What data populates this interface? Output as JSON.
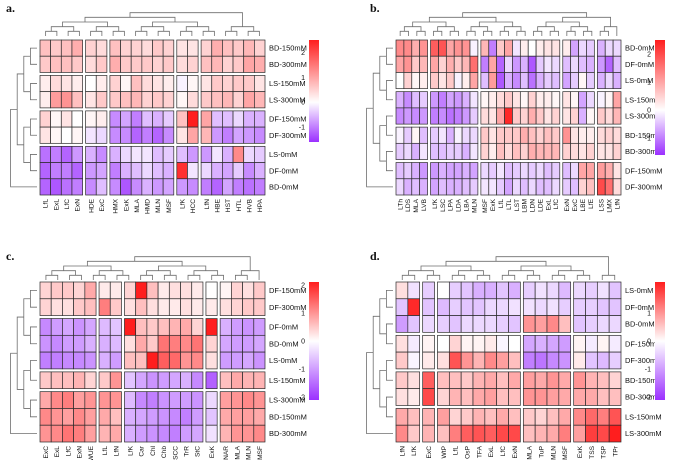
{
  "palette": {
    "low": "#9b30ff",
    "mid": "#ffffff",
    "high": "#ff1e1e",
    "grid": "#2a2a2a",
    "dendrogram": "#6e6e6e"
  },
  "chart_data": [
    {
      "type": "heatmap",
      "panel_label": "a.",
      "rows": [
        "BD-150mM",
        "BD-300mM",
        "LS-150mM",
        "LS-300mM",
        "DF-150mM",
        "DF-300mM",
        "LS-0mM",
        "DF-0mM",
        "BD-0mM"
      ],
      "row_groups": [
        2,
        2,
        2,
        3
      ],
      "columns": [
        "LfL",
        "ExL",
        "LfC",
        "ExN",
        "HDE",
        "ExC",
        "HMX",
        "ExK",
        "MLA",
        "HMD",
        "MLN",
        "MSF",
        "LfK",
        "HCC",
        "LfN",
        "HBE",
        "HST",
        "HTL",
        "HVB",
        "HPA"
      ],
      "column_groups": [
        4,
        2,
        6,
        2,
        6
      ],
      "colorbar": {
        "min": -1.6,
        "max": 2.5,
        "ticks": [
          -1,
          0,
          1,
          2
        ]
      },
      "values": [
        [
          0.7,
          0.6,
          0.7,
          0.9,
          0.5,
          0.4,
          0.7,
          0.5,
          0.5,
          0.4,
          0.6,
          0.5,
          0.3,
          0.3,
          0.5,
          0.9,
          0.7,
          0.6,
          0.8,
          0.5
        ],
        [
          0.6,
          0.7,
          0.7,
          0.6,
          0.4,
          0.6,
          0.9,
          0.6,
          0.6,
          0.6,
          0.5,
          0.6,
          0.4,
          0.5,
          0.7,
          0.8,
          0.5,
          0.6,
          1.0,
          0.9
        ],
        [
          0.2,
          0.4,
          0.3,
          0.2,
          0.0,
          0.2,
          0.5,
          0.1,
          0.7,
          0.4,
          0.3,
          0.2,
          -0.1,
          0.1,
          0.3,
          0.6,
          0.5,
          0.6,
          0.6,
          0.3
        ],
        [
          0.2,
          1.1,
          1.2,
          0.7,
          0.3,
          0.6,
          0.6,
          0.7,
          0.8,
          0.5,
          0.6,
          0.5,
          0.1,
          0.4,
          0.6,
          0.7,
          0.8,
          0.5,
          1.0,
          0.8
        ],
        [
          0.5,
          0.1,
          0.3,
          0.0,
          0.1,
          0.2,
          -0.9,
          -0.7,
          -1.0,
          -0.5,
          -0.6,
          -0.4,
          0.7,
          2.5,
          1.0,
          -0.5,
          -0.5,
          -0.3,
          -0.6,
          -0.6
        ],
        [
          0.3,
          0.1,
          0.0,
          0.1,
          -0.2,
          -0.3,
          -0.9,
          -0.9,
          -1.2,
          -1.0,
          -1.2,
          -0.9,
          0.3,
          1.0,
          0.8,
          -0.8,
          -1.0,
          -0.7,
          -0.8,
          -0.9
        ],
        [
          -1.1,
          -1.0,
          -1.2,
          -0.8,
          -0.6,
          -0.9,
          -0.6,
          -0.3,
          -0.2,
          -0.2,
          -0.5,
          -0.4,
          -0.5,
          -0.8,
          -0.8,
          -0.2,
          -0.6,
          1.3,
          -0.3,
          -0.4
        ],
        [
          -1.2,
          -1.0,
          -1.0,
          -1.2,
          -0.8,
          -0.7,
          -1.0,
          -0.6,
          -0.5,
          -0.3,
          -0.5,
          -0.6,
          2.3,
          -0.2,
          -0.3,
          -0.6,
          -0.7,
          -0.4,
          -0.9,
          -0.6
        ],
        [
          -1.2,
          -1.3,
          -1.1,
          -1.0,
          -0.9,
          -0.5,
          -0.9,
          -1.3,
          -0.9,
          -0.6,
          -0.8,
          -0.7,
          -0.8,
          -0.9,
          -1.0,
          -1.2,
          -0.7,
          -1.0,
          -1.1,
          -1.0
        ]
      ]
    },
    {
      "type": "heatmap",
      "panel_label": "b.",
      "rows": [
        "BD-0mM",
        "DF-0mM",
        "LS-0mM",
        "LS-150mM",
        "LS-300mM",
        "BD-150mM",
        "BD-300mM",
        "DF-150mM",
        "DF-300mM"
      ],
      "row_groups": [
        3,
        2,
        2,
        2
      ],
      "columns": [
        "LTh",
        "LDS",
        "MLA",
        "LVB",
        "LfK",
        "LSC",
        "LPA",
        "LDA",
        "LBA",
        "MLN",
        "MSF",
        "ExK",
        "LfL",
        "LTL",
        "LST",
        "LBM",
        "LDN",
        "LDE",
        "ExL",
        "LfC",
        "ExN",
        "ExC",
        "LBE",
        "LfE",
        "LSS",
        "LMX",
        "LfN"
      ],
      "column_groups": [
        4,
        6,
        10,
        4,
        3
      ],
      "colorbar": {
        "min": -1.6,
        "max": 2.5,
        "ticks": [
          -1,
          0,
          1,
          2
        ]
      },
      "values": [
        [
          1.3,
          1.3,
          0.9,
          1.2,
          1.8,
          1.9,
          1.0,
          1.2,
          1.2,
          -0.1,
          0.8,
          -1.0,
          0.6,
          1.0,
          -0.2,
          0.2,
          0.0,
          0.2,
          0.3,
          0.3,
          0.2,
          -0.7,
          -0.3,
          -0.4,
          -0.6,
          -0.3,
          -0.3
        ],
        [
          1.0,
          1.2,
          0.6,
          0.8,
          1.0,
          0.5,
          0.9,
          0.6,
          0.8,
          1.6,
          -1.0,
          1.0,
          -1.2,
          -0.3,
          -0.8,
          -0.6,
          -1.3,
          -0.4,
          -0.2,
          -0.3,
          -0.5,
          -0.3,
          -0.5,
          -0.6,
          -0.8,
          -1.2,
          -0.5
        ],
        [
          0.0,
          0.5,
          0.1,
          0.2,
          0.6,
          0.3,
          0.6,
          -0.1,
          0.2,
          1.0,
          -0.5,
          1.1,
          -1.3,
          -0.6,
          -0.9,
          -0.5,
          -1.1,
          -0.6,
          -0.4,
          -0.5,
          -0.7,
          -0.4,
          0.1,
          -0.4,
          -0.6,
          -0.3,
          -0.6
        ],
        [
          -0.6,
          -0.9,
          -0.5,
          -0.4,
          -0.8,
          -1.0,
          -0.7,
          -0.8,
          -0.6,
          -0.2,
          0.1,
          0.2,
          0.4,
          0.6,
          0.3,
          0.1,
          0.5,
          0.2,
          0.2,
          0.1,
          0.3,
          0.1,
          -0.7,
          -0.3,
          -0.1,
          0.1,
          1.0
        ],
        [
          -0.9,
          -0.8,
          -0.9,
          -0.8,
          -1.0,
          -0.9,
          -1.1,
          -1.0,
          -0.8,
          -0.4,
          0.4,
          0.3,
          1.0,
          2.4,
          0.6,
          0.5,
          0.9,
          0.6,
          0.3,
          0.5,
          0.3,
          0.5,
          -0.6,
          0.1,
          0.6,
          0.4,
          0.8
        ],
        [
          -0.1,
          -0.4,
          0.1,
          -0.5,
          -0.4,
          -0.2,
          -0.6,
          -0.1,
          -0.3,
          -0.3,
          0.6,
          0.3,
          0.6,
          0.6,
          0.6,
          0.9,
          0.7,
          0.5,
          0.7,
          0.6,
          1.2,
          0.3,
          0.2,
          0.2,
          0.4,
          0.5,
          0.4
        ],
        [
          -0.4,
          -0.3,
          -0.6,
          -0.2,
          -0.5,
          -0.5,
          -0.4,
          -0.4,
          -0.6,
          -0.2,
          0.5,
          0.2,
          0.7,
          0.4,
          0.7,
          0.5,
          0.9,
          0.8,
          0.8,
          0.8,
          0.5,
          0.4,
          0.3,
          0.5,
          0.3,
          0.3,
          0.5
        ],
        [
          -0.5,
          -0.4,
          -0.6,
          -0.8,
          -0.8,
          -0.6,
          -0.7,
          -0.7,
          -0.6,
          -0.7,
          -0.3,
          -0.4,
          -0.2,
          -0.5,
          -0.4,
          -0.3,
          -0.4,
          -0.3,
          -0.5,
          -0.4,
          -0.5,
          -0.3,
          1.0,
          1.0,
          1.1,
          0.9,
          0.3
        ],
        [
          -0.3,
          -0.6,
          -0.5,
          -0.6,
          -0.7,
          -0.5,
          -0.6,
          -0.6,
          -0.5,
          -0.4,
          -0.2,
          -0.2,
          -0.4,
          -0.7,
          -0.3,
          -0.5,
          -0.3,
          -0.5,
          -0.5,
          -0.3,
          -0.4,
          -0.5,
          0.5,
          0.7,
          2.0,
          1.6,
          0.4
        ]
      ]
    },
    {
      "type": "heatmap",
      "panel_label": "c.",
      "rows": [
        "DF-150mM",
        "DF-300mM",
        "DF-0mM",
        "BD-0mM",
        "LS-0mM",
        "LS-150mM",
        "LS-300mM",
        "BD-150mM",
        "BD-300mM"
      ],
      "row_groups": [
        2,
        3,
        1,
        3
      ],
      "columns": [
        "ExC",
        "ExL",
        "LfC",
        "ExN",
        "WUE",
        "LfL",
        "LfN",
        "LfK",
        "Car",
        "Chl",
        "Chb",
        "SCC",
        "TrR",
        "StC",
        "ExK",
        "NAR",
        "MLA",
        "MLN",
        "MSF"
      ],
      "column_groups": [
        5,
        2,
        7,
        1,
        4
      ],
      "colorbar": {
        "min": -2.1,
        "max": 2.1,
        "ticks": [
          -2,
          -1,
          0,
          1,
          2
        ]
      },
      "values": [
        [
          0.4,
          0.5,
          0.5,
          0.4,
          0.8,
          0.2,
          0.2,
          0.4,
          2.2,
          0.6,
          0.2,
          0.3,
          0.3,
          0.2,
          0.0,
          0.1,
          0.4,
          0.3,
          0.5
        ],
        [
          0.4,
          0.3,
          0.3,
          0.5,
          0.6,
          1.2,
          0.5,
          0.3,
          0.6,
          0.3,
          0.2,
          0.2,
          0.3,
          0.2,
          0.2,
          0.3,
          0.4,
          0.5,
          0.5
        ],
        [
          -1.2,
          -1.0,
          -0.9,
          -1.1,
          -0.9,
          -0.7,
          -0.6,
          2.3,
          0.6,
          0.5,
          0.6,
          0.7,
          0.8,
          0.4,
          2.1,
          -0.8,
          -1.0,
          -1.1,
          -1.0
        ],
        [
          -1.1,
          -1.2,
          -1.0,
          -1.0,
          -0.8,
          -0.8,
          -0.7,
          0.3,
          0.8,
          0.5,
          1.3,
          1.2,
          1.1,
          1.3,
          0.4,
          -0.9,
          -1.0,
          -1.0,
          -0.9
        ],
        [
          -1.3,
          -1.3,
          -1.2,
          -1.2,
          -1.1,
          -0.8,
          -1.0,
          0.6,
          0.6,
          2.1,
          1.5,
          1.4,
          1.0,
          1.1,
          0.3,
          -1.0,
          -1.0,
          -0.9,
          -1.1
        ],
        [
          0.5,
          0.6,
          0.6,
          0.7,
          0.4,
          0.5,
          1.0,
          -0.6,
          -0.9,
          -1.1,
          -1.0,
          -0.9,
          -0.8,
          -1.2,
          -1.6,
          0.6,
          0.8,
          0.7,
          0.7
        ],
        [
          0.8,
          1.1,
          1.2,
          0.9,
          1.0,
          1.0,
          1.0,
          -0.7,
          -1.2,
          -1.3,
          -1.1,
          -1.0,
          -1.0,
          -1.1,
          -0.4,
          0.9,
          1.0,
          1.1,
          1.0
        ],
        [
          1.1,
          1.0,
          0.9,
          1.1,
          0.9,
          0.8,
          0.6,
          -0.8,
          -0.9,
          -1.0,
          -1.1,
          -1.2,
          -1.3,
          -1.0,
          -0.6,
          0.8,
          0.9,
          0.9,
          0.8
        ],
        [
          1.0,
          1.1,
          1.3,
          1.2,
          0.9,
          0.7,
          0.8,
          -0.8,
          -1.0,
          -1.1,
          -1.2,
          -1.3,
          -1.0,
          -0.9,
          -0.3,
          0.7,
          1.0,
          1.0,
          1.1
        ]
      ]
    },
    {
      "type": "heatmap",
      "panel_label": "d.",
      "rows": [
        "LS-0mM",
        "DF-0mM",
        "BD-0mM",
        "DF-150mM",
        "DF-300mM",
        "BD-150mM",
        "BD-300mM",
        "LS-150mM",
        "LS-300mM"
      ],
      "row_groups": [
        3,
        2,
        2,
        2
      ],
      "columns": [
        "LfN",
        "LfK",
        "ExC",
        "WtP",
        "LfL",
        "OsP",
        "TFA",
        "ExL",
        "LfC",
        "ExN",
        "MLA",
        "TuP",
        "MLN",
        "MSF",
        "ExK",
        "TSS",
        "TSP",
        "TPr"
      ],
      "column_groups": [
        2,
        1,
        7,
        4,
        4
      ],
      "colorbar": {
        "min": -2.1,
        "max": 2.1,
        "ticks": [
          -2,
          -1,
          0,
          1
        ]
      },
      "values": [
        [
          0.3,
          -0.3,
          -0.5,
          0.0,
          -0.5,
          -0.6,
          -0.8,
          -0.8,
          -0.6,
          -0.8,
          -0.5,
          -0.3,
          -0.4,
          -0.7,
          -0.4,
          -0.5,
          -0.3,
          -0.6
        ],
        [
          -0.6,
          2.0,
          -0.6,
          -0.7,
          -0.5,
          -0.6,
          -0.6,
          -0.4,
          -0.4,
          -0.3,
          -0.3,
          -0.4,
          -0.3,
          -0.5,
          -0.5,
          -0.5,
          -0.6,
          -0.6
        ],
        [
          -1.0,
          -0.6,
          -0.4,
          -0.5,
          -0.6,
          -0.4,
          -0.4,
          -0.4,
          -0.5,
          -0.6,
          1.0,
          0.9,
          1.1,
          0.6,
          -0.6,
          -0.5,
          -0.4,
          -0.4
        ],
        [
          0.3,
          -0.2,
          0.1,
          0.0,
          0.4,
          0.1,
          0.1,
          0.2,
          -0.1,
          0.0,
          -0.9,
          -0.8,
          -0.9,
          -1.0,
          0.1,
          -0.2,
          0.1,
          -0.2
        ],
        [
          0.5,
          -0.1,
          0.2,
          0.3,
          1.6,
          1.0,
          0.7,
          1.1,
          0.9,
          0.6,
          -1.3,
          -1.4,
          -1.2,
          -1.1,
          0.2,
          -0.6,
          -0.7,
          -0.5
        ],
        [
          0.5,
          0.3,
          1.5,
          0.6,
          0.6,
          0.5,
          0.7,
          0.8,
          0.6,
          0.8,
          0.9,
          0.8,
          1.0,
          0.8,
          1.0,
          0.7,
          0.6,
          0.4
        ],
        [
          0.3,
          0.2,
          1.7,
          0.4,
          0.7,
          0.6,
          0.8,
          0.9,
          0.6,
          0.6,
          1.0,
          1.0,
          0.9,
          0.8,
          0.8,
          0.8,
          0.6,
          0.6
        ],
        [
          0.8,
          0.6,
          0.7,
          0.9,
          0.4,
          0.5,
          0.7,
          0.6,
          0.8,
          0.6,
          0.5,
          0.4,
          0.6,
          0.8,
          1.1,
          1.4,
          1.2,
          1.6
        ],
        [
          1.1,
          0.5,
          0.7,
          0.6,
          1.2,
          1.5,
          1.6,
          1.5,
          1.7,
          1.7,
          0.6,
          0.7,
          0.8,
          1.2,
          0.9,
          1.8,
          1.7,
          2.1
        ]
      ]
    }
  ]
}
